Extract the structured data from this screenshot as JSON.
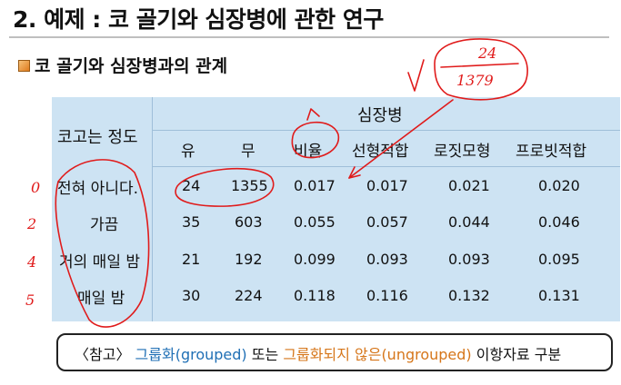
{
  "title": "2. 예제 : 코 골기와 심장병에 관한 연구",
  "subtitle": "코 골기와 심장병과의 관계",
  "table": {
    "row_header": "코고는 정도",
    "group_header": "심장병",
    "columns": [
      "유",
      "무",
      "비율",
      "선형적합",
      "로짓모형",
      "프로빗적합"
    ],
    "rows": [
      {
        "label": "전혀 아니다.",
        "values": [
          "24",
          "1355",
          "0.017",
          "0.017",
          "0.021",
          "0.020"
        ]
      },
      {
        "label": "가끔",
        "values": [
          "35",
          "603",
          "0.055",
          "0.057",
          "0.044",
          "0.046"
        ]
      },
      {
        "label": "거의 매일 밤",
        "values": [
          "21",
          "192",
          "0.099",
          "0.093",
          "0.093",
          "0.095"
        ]
      },
      {
        "label": "매일 밤",
        "values": [
          "30",
          "224",
          "0.118",
          "0.116",
          "0.132",
          "0.131"
        ]
      }
    ]
  },
  "note": {
    "prefix": "〈참고〉",
    "grouped": "그룹화(grouped)",
    "mid": "또는",
    "ungrouped": "그룹화되지 않은(ungrouped)",
    "suffix": "이항자료 구분"
  },
  "annotations": {
    "fraction_numerator": "24",
    "fraction_denominator": "1379",
    "scores": [
      "0",
      "2",
      "4",
      "5"
    ]
  },
  "colors": {
    "table_bg": "#cde3f3",
    "ink": "#e01b1b",
    "grouped": "#1f6fb5",
    "ungrouped": "#d6761a",
    "bullet": "#e07b1e"
  }
}
